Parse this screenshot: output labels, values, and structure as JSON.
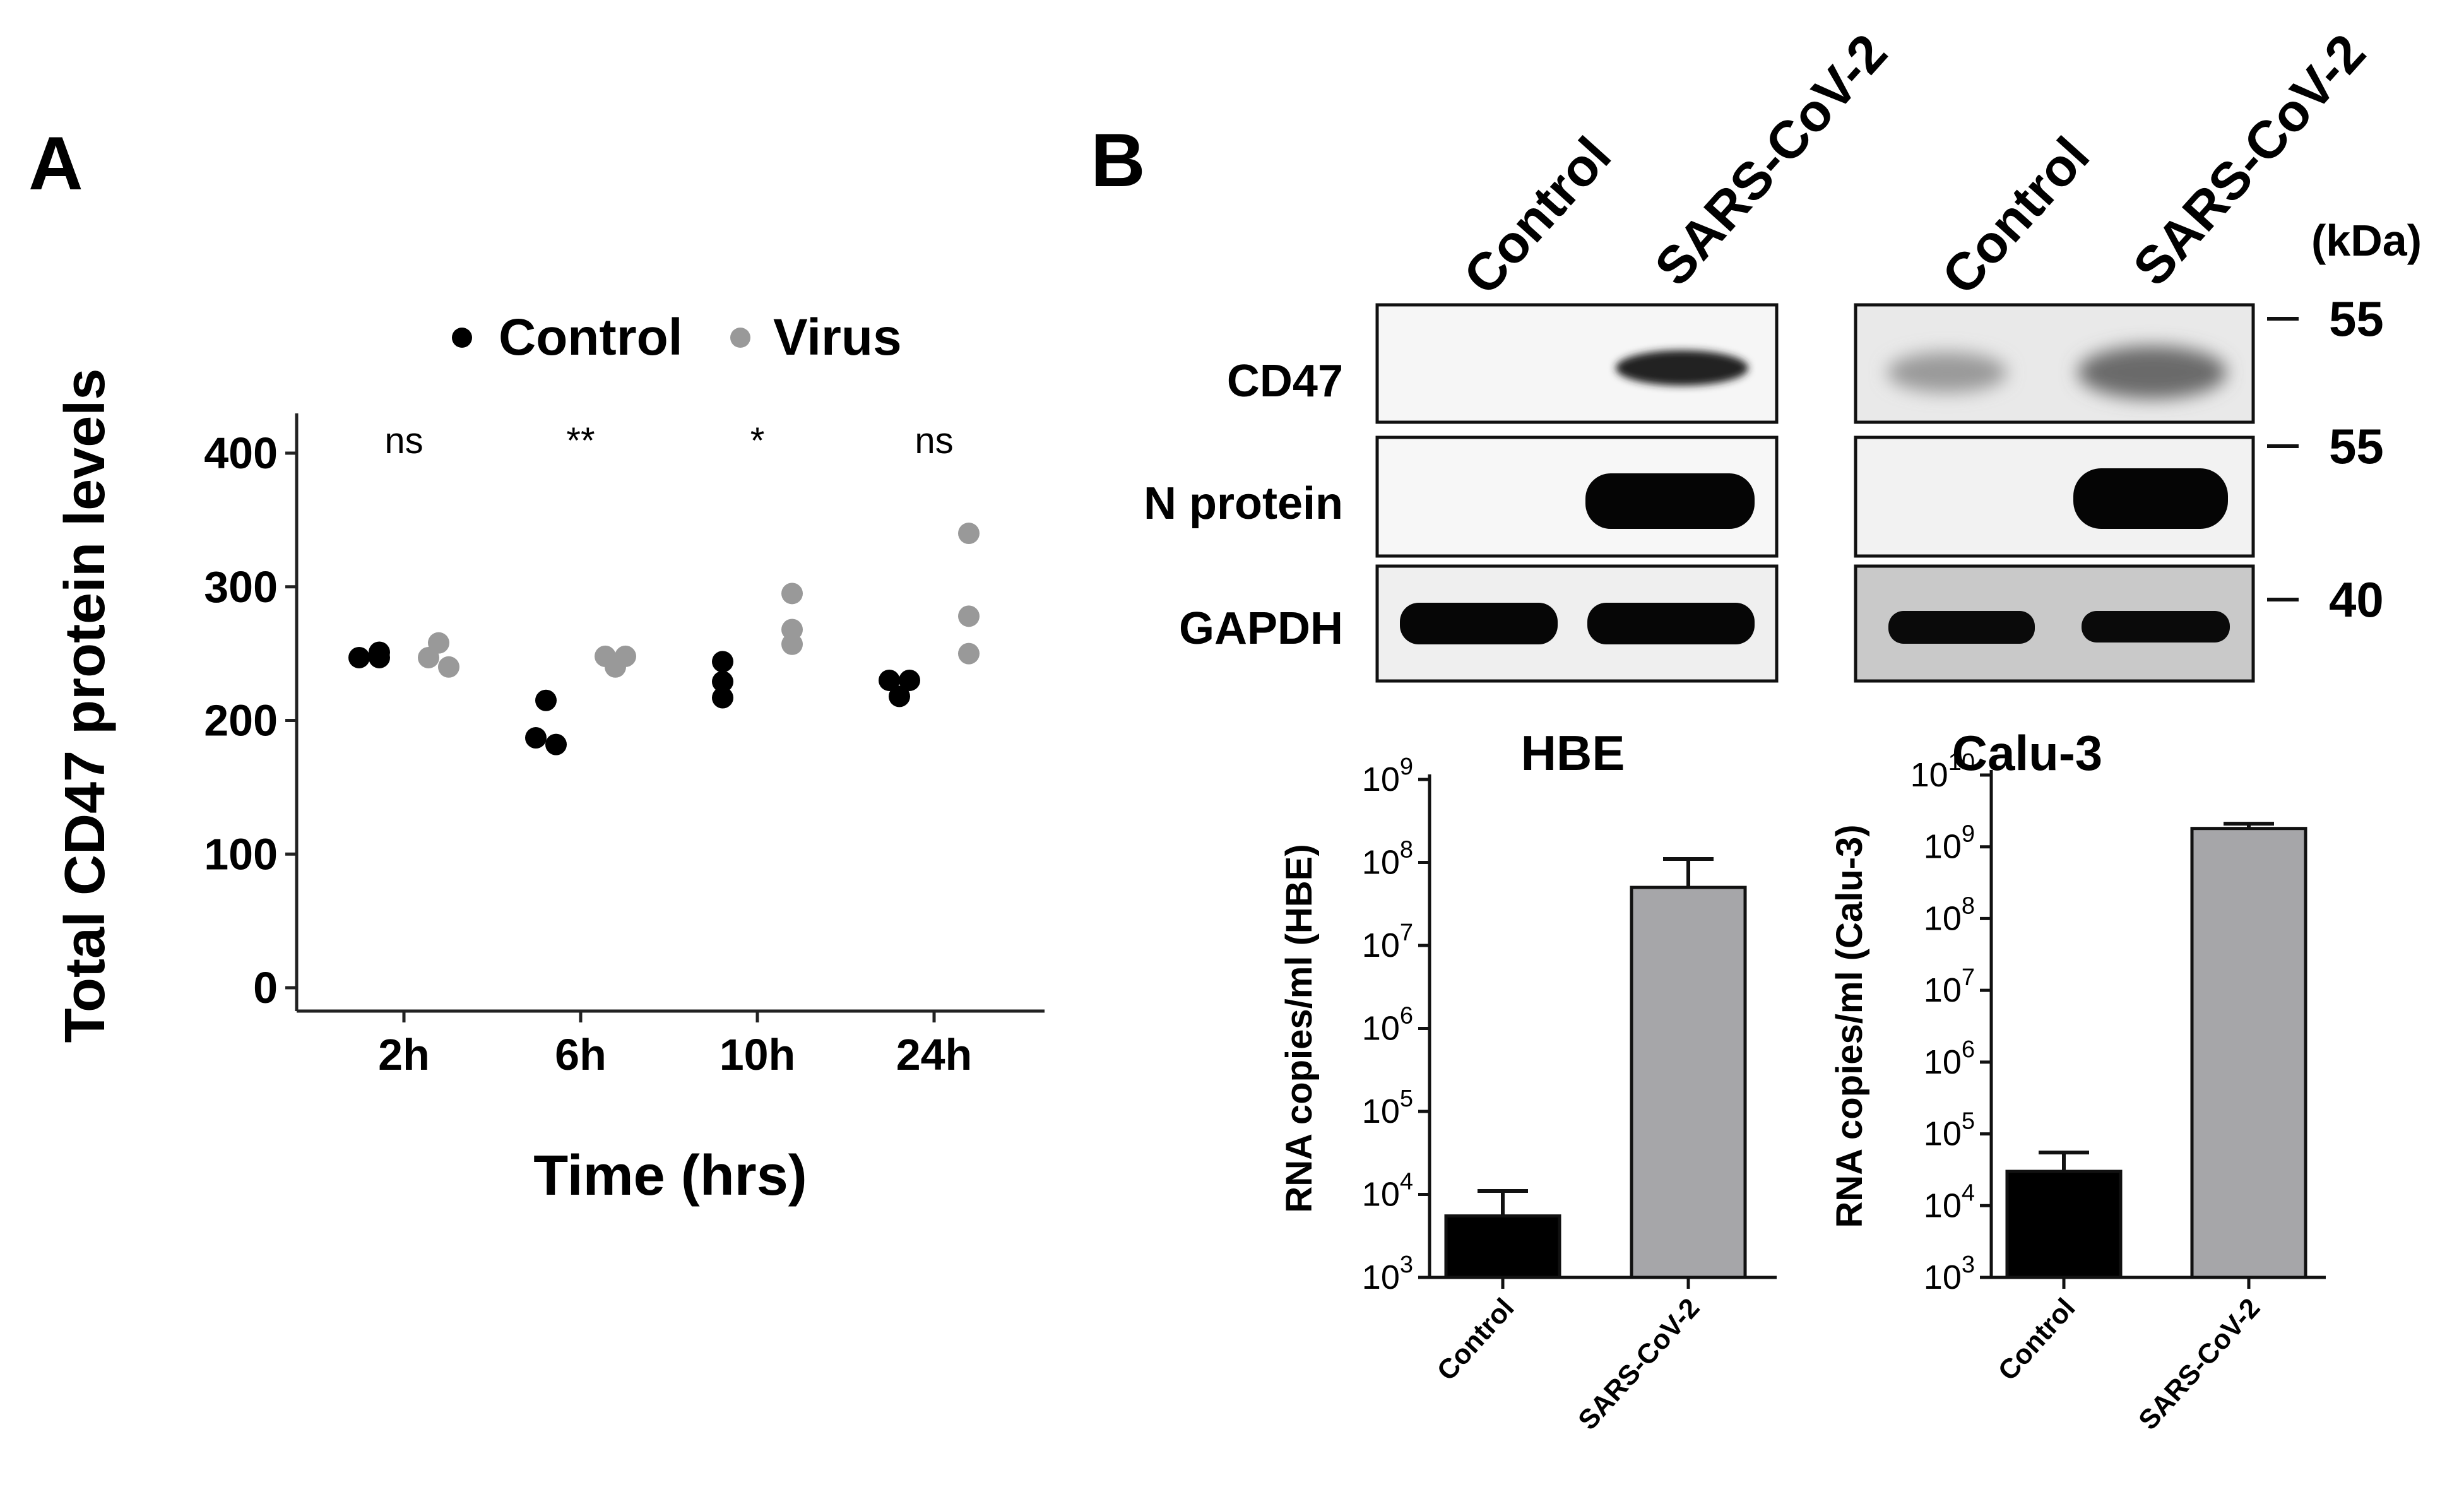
{
  "panels": {
    "a_label": "A",
    "b_label": "B"
  },
  "scatter": {
    "legend": [
      "Control",
      "Virus"
    ],
    "ylabel": "Total CD47 protein levels",
    "xlabel": "Time (hrs)",
    "significance": [
      "ns",
      "**",
      "*",
      "ns"
    ]
  },
  "blot": {
    "left_lanes": [
      "Control",
      "SARS-CoV-2"
    ],
    "right_lanes": [
      "Control",
      "SARS-CoV-2"
    ],
    "rows": [
      "CD47",
      "N protein",
      "GAPDH"
    ],
    "kda_header": "(kDa)",
    "markers": [
      "55",
      "55",
      "40"
    ]
  },
  "colors": {
    "control": "#000000",
    "virus": "#999999",
    "bar_virus": "#a6a6a9"
  },
  "chart_data": [
    {
      "type": "scatter",
      "categories": [
        "2h",
        "6h",
        "10h",
        "24h"
      ],
      "series": [
        {
          "name": "Control",
          "values": [
            [
              247,
              251,
              247
            ],
            [
              215,
              187,
              182
            ],
            [
              244,
              229,
              217
            ],
            [
              230,
              218,
              230
            ]
          ]
        },
        {
          "name": "Virus",
          "values": [
            [
              258,
              247,
              240
            ],
            [
              248,
              240,
              248
            ],
            [
              295,
              268,
              257
            ],
            [
              340,
              278,
              250
            ]
          ]
        }
      ],
      "xlabel": "Time (hrs)",
      "ylabel": "Total CD47 protein levels",
      "ylim": [
        0,
        430
      ],
      "yticks": [
        0,
        100,
        200,
        300,
        400
      ],
      "annotations": [
        "ns",
        "**",
        "*",
        "ns"
      ],
      "legend": "top"
    },
    {
      "type": "bar",
      "title": "HBE",
      "categories": [
        "Control",
        "SARS-CoV-2"
      ],
      "values": [
        5500,
        50000000
      ],
      "error_upper": [
        11000,
        110000000
      ],
      "ylabel": "RNA copies/ml (HBE)",
      "yscale": "log",
      "ylim": [
        1000,
        1000000000
      ],
      "ytick_exponents": [
        "3",
        "4",
        "5",
        "6",
        "7",
        "8",
        "9"
      ]
    },
    {
      "type": "bar",
      "title": "Calu-3",
      "categories": [
        "Control",
        "SARS-CoV-2"
      ],
      "values": [
        30000,
        1800000000
      ],
      "error_upper": [
        55000,
        2100000000
      ],
      "ylabel": "RNA copies/ml (Calu-3)",
      "yscale": "log",
      "ylim": [
        1000,
        10000000000
      ],
      "ytick_exponents": [
        "3",
        "4",
        "5",
        "6",
        "7",
        "8",
        "9",
        "10"
      ]
    }
  ]
}
